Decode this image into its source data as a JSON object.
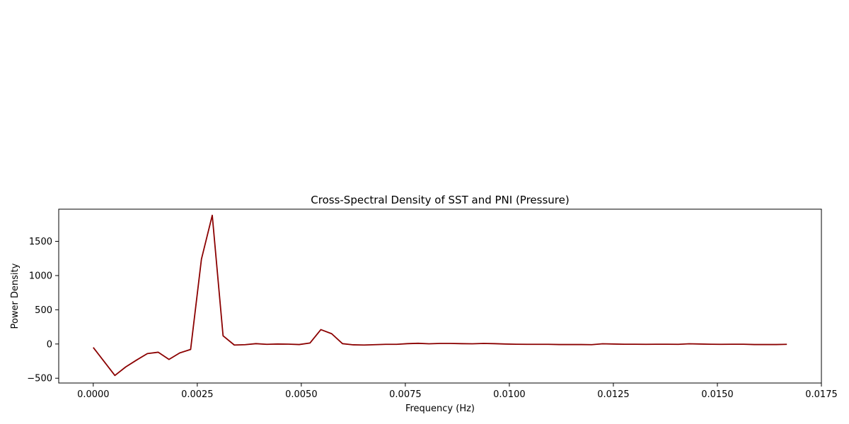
{
  "chart_data": {
    "type": "line",
    "title": "Cross-Spectral Density of SST and PNI (Pressure)",
    "xlabel": "Frequency (Hz)",
    "ylabel": "Power Density",
    "xlim": [
      -0.00083,
      0.0175
    ],
    "ylim": [
      -570,
      1970
    ],
    "xticks": [
      0.0,
      0.0025,
      0.005,
      0.0075,
      0.01,
      0.0125,
      0.015,
      0.0175
    ],
    "xtick_labels": [
      "0.0000",
      "0.0025",
      "0.0050",
      "0.0075",
      "0.0100",
      "0.0125",
      "0.0150",
      "0.0175"
    ],
    "yticks": [
      -500,
      0,
      500,
      1000,
      1500
    ],
    "ytick_labels": [
      "−500",
      "0",
      "500",
      "1000",
      "1500"
    ],
    "grid": false,
    "series": [
      {
        "color": "#8b0000",
        "x": [
          0.0,
          0.00052,
          0.00078,
          0.00104,
          0.0013,
          0.00156,
          0.00182,
          0.00208,
          0.00234,
          0.0026,
          0.00286,
          0.00312,
          0.00339,
          0.00365,
          0.00391,
          0.00417,
          0.00443,
          0.00469,
          0.00495,
          0.00521,
          0.00547,
          0.00573,
          0.00599,
          0.00625,
          0.00651,
          0.00677,
          0.00703,
          0.00729,
          0.00755,
          0.00781,
          0.00807,
          0.00833,
          0.00859,
          0.00885,
          0.00911,
          0.00938,
          0.00964,
          0.0099,
          0.01016,
          0.01042,
          0.01068,
          0.01094,
          0.0112,
          0.01146,
          0.01172,
          0.01198,
          0.01224,
          0.0125,
          0.01276,
          0.01302,
          0.01328,
          0.01354,
          0.0138,
          0.01406,
          0.01432,
          0.01458,
          0.01484,
          0.0151,
          0.01536,
          0.01562,
          0.01589,
          0.01615,
          0.01641,
          0.01667
        ],
        "y": [
          -50,
          -460,
          -335,
          -235,
          -140,
          -120,
          -225,
          -130,
          -80,
          1240,
          1880,
          120,
          -15,
          -10,
          5,
          -5,
          0,
          -2,
          -8,
          15,
          210,
          150,
          5,
          -12,
          -15,
          -10,
          -5,
          -5,
          5,
          10,
          3,
          8,
          8,
          5,
          3,
          8,
          5,
          0,
          -3,
          -5,
          -5,
          -5,
          -8,
          -8,
          -8,
          -10,
          3,
          0,
          -3,
          -3,
          -5,
          -3,
          -3,
          -5,
          3,
          0,
          -3,
          -5,
          -3,
          -3,
          -8,
          -8,
          -8,
          -5
        ]
      }
    ]
  }
}
